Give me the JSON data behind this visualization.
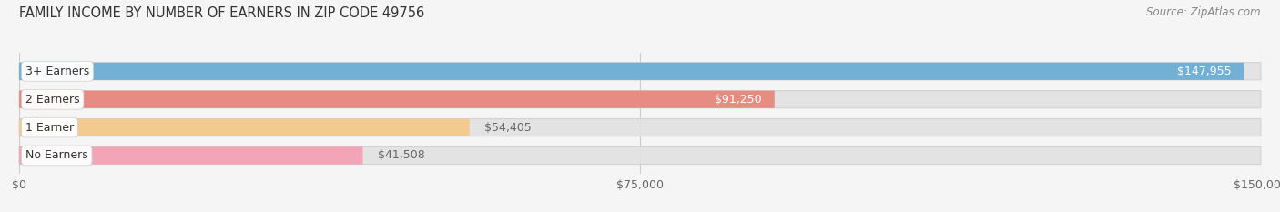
{
  "title": "FAMILY INCOME BY NUMBER OF EARNERS IN ZIP CODE 49756",
  "source": "Source: ZipAtlas.com",
  "categories": [
    "No Earners",
    "1 Earner",
    "2 Earners",
    "3+ Earners"
  ],
  "values": [
    41508,
    54405,
    91250,
    147955
  ],
  "bar_colors": [
    "#f5a0b4",
    "#f5c98a",
    "#e8857a",
    "#6aacd4"
  ],
  "bar_bg_color": "#e2e2e2",
  "value_labels": [
    "$41,508",
    "$54,405",
    "$91,250",
    "$147,955"
  ],
  "label_inside": [
    false,
    false,
    true,
    true
  ],
  "x_ticks": [
    0,
    75000,
    150000
  ],
  "x_tick_labels": [
    "$0",
    "$75,000",
    "$150,000"
  ],
  "xlim": [
    0,
    150000
  ],
  "title_fontsize": 10.5,
  "source_fontsize": 8.5,
  "bar_label_fontsize": 9,
  "category_fontsize": 9,
  "tick_fontsize": 9,
  "background_color": "#f5f5f5"
}
